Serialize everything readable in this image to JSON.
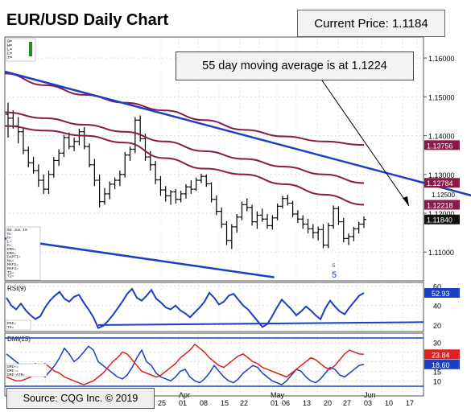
{
  "title": "EUR/USD Daily Chart",
  "current_price_label": "Current Price: 1.1184",
  "callout": "55 day moving average is at 1.1224",
  "source": "Source: CQG Inc. © 2019",
  "colors": {
    "price_bars": "#000000",
    "moving_averages": "#8b1a4a",
    "trendlines": "#1a3fc4",
    "rsi": "#1a3fc4",
    "dmi_plus": "#1a3fc4",
    "dmi_minus": "#e02020",
    "bg": "#ffffff"
  },
  "chart_data": [
    {
      "type": "candlestick",
      "title": "EUR/USD Daily Chart",
      "ylim": [
        1.103,
        1.165
      ],
      "yticks": [
        1.11,
        1.12,
        1.13,
        1.14,
        1.15,
        1.16
      ],
      "ytick_labels": [
        "1.11000",
        "1.12000",
        "1.13000",
        "1.14000",
        "1.15000",
        "1.16000"
      ],
      "extra_labels": [
        "1.12500"
      ],
      "price_tags": [
        {
          "label": "1.13756",
          "value": 1.13756,
          "bg": "#8b1a4a"
        },
        {
          "label": "1.12784",
          "value": 1.12784,
          "bg": "#8b1a4a"
        },
        {
          "label": "1.12218",
          "value": 1.12218,
          "bg": "#8b1a4a"
        },
        {
          "label": "1.11840",
          "value": 1.1184,
          "bg": "#111111"
        }
      ],
      "x_labels": [
        "25",
        "Apr",
        "01",
        "08",
        "15",
        "22",
        "May",
        "01",
        "06",
        "13",
        "20",
        "27",
        "Jun",
        "03",
        "10",
        "17"
      ],
      "ohlc": [
        [
          1.1455,
          1.1485,
          1.1395,
          1.1445
        ],
        [
          1.1445,
          1.1465,
          1.1418,
          1.1425
        ],
        [
          1.1425,
          1.1448,
          1.138,
          1.141
        ],
        [
          1.141,
          1.142,
          1.1352,
          1.1362
        ],
        [
          1.1362,
          1.1372,
          1.1318,
          1.133
        ],
        [
          1.133,
          1.1345,
          1.1302,
          1.131
        ],
        [
          1.131,
          1.1326,
          1.1268,
          1.1285
        ],
        [
          1.1285,
          1.13,
          1.125,
          1.1262
        ],
        [
          1.1262,
          1.131,
          1.125,
          1.13
        ],
        [
          1.13,
          1.1345,
          1.1292,
          1.1336
        ],
        [
          1.1336,
          1.1365,
          1.1322,
          1.1355
        ],
        [
          1.1355,
          1.1402,
          1.1345,
          1.1395
        ],
        [
          1.1395,
          1.1408,
          1.1365,
          1.1372
        ],
        [
          1.1372,
          1.1395,
          1.136,
          1.1385
        ],
        [
          1.1385,
          1.1418,
          1.1375,
          1.141
        ],
        [
          1.141,
          1.1422,
          1.1365,
          1.1372
        ],
        [
          1.1372,
          1.138,
          1.1318,
          1.1325
        ],
        [
          1.1325,
          1.134,
          1.127,
          1.1285
        ],
        [
          1.1285,
          1.13,
          1.1215,
          1.123
        ],
        [
          1.123,
          1.1265,
          1.1222,
          1.125
        ],
        [
          1.125,
          1.1282,
          1.1236,
          1.1275
        ],
        [
          1.1275,
          1.1292,
          1.1262,
          1.1285
        ],
        [
          1.1285,
          1.131,
          1.127,
          1.13
        ],
        [
          1.13,
          1.1358,
          1.1292,
          1.135
        ],
        [
          1.135,
          1.1372,
          1.1335,
          1.1365
        ],
        [
          1.1365,
          1.1448,
          1.1355,
          1.144
        ],
        [
          1.144,
          1.1452,
          1.1385,
          1.1392
        ],
        [
          1.1392,
          1.1405,
          1.1335,
          1.1345
        ],
        [
          1.1345,
          1.136,
          1.131,
          1.1325
        ],
        [
          1.1325,
          1.1335,
          1.1275,
          1.1286
        ],
        [
          1.1286,
          1.1296,
          1.1245,
          1.126
        ],
        [
          1.126,
          1.127,
          1.123,
          1.1245
        ],
        [
          1.1245,
          1.126,
          1.1222,
          1.1255
        ],
        [
          1.1255,
          1.1262,
          1.1225,
          1.1236
        ],
        [
          1.1236,
          1.1258,
          1.1228,
          1.125
        ],
        [
          1.125,
          1.1275,
          1.1238,
          1.1268
        ],
        [
          1.1268,
          1.1285,
          1.125,
          1.1262
        ],
        [
          1.1262,
          1.1292,
          1.1258,
          1.1285
        ],
        [
          1.1285,
          1.1302,
          1.1278,
          1.1295
        ],
        [
          1.1295,
          1.13,
          1.1268,
          1.1276
        ],
        [
          1.1276,
          1.128,
          1.1228,
          1.1236
        ],
        [
          1.1236,
          1.1246,
          1.1195,
          1.1205
        ],
        [
          1.1205,
          1.1215,
          1.1162,
          1.1172
        ],
        [
          1.1172,
          1.118,
          1.1118,
          1.113
        ],
        [
          1.113,
          1.1172,
          1.1108,
          1.1165
        ],
        [
          1.1165,
          1.1198,
          1.115,
          1.119
        ],
        [
          1.119,
          1.123,
          1.1182,
          1.1222
        ],
        [
          1.1222,
          1.1238,
          1.1205,
          1.1215
        ],
        [
          1.1215,
          1.1222,
          1.1168,
          1.1178
        ],
        [
          1.1178,
          1.1205,
          1.116,
          1.1195
        ],
        [
          1.1195,
          1.1212,
          1.1178,
          1.1185
        ],
        [
          1.1185,
          1.1198,
          1.116,
          1.1168
        ],
        [
          1.1168,
          1.1195,
          1.1158,
          1.1188
        ],
        [
          1.1188,
          1.1225,
          1.1182,
          1.1218
        ],
        [
          1.1218,
          1.1245,
          1.1212,
          1.1238
        ],
        [
          1.1238,
          1.1248,
          1.122,
          1.1226
        ],
        [
          1.1226,
          1.1232,
          1.119,
          1.1198
        ],
        [
          1.1198,
          1.1208,
          1.1175,
          1.1185
        ],
        [
          1.1185,
          1.1195,
          1.116,
          1.1172
        ],
        [
          1.1172,
          1.1186,
          1.1148,
          1.116
        ],
        [
          1.116,
          1.1172,
          1.1135,
          1.115
        ],
        [
          1.115,
          1.1166,
          1.113,
          1.1158
        ],
        [
          1.1158,
          1.1172,
          1.111,
          1.1118
        ],
        [
          1.1118,
          1.1175,
          1.111,
          1.1168
        ],
        [
          1.1168,
          1.122,
          1.116,
          1.1212
        ],
        [
          1.1212,
          1.1218,
          1.117,
          1.1178
        ],
        [
          1.1178,
          1.1188,
          1.1125,
          1.1135
        ],
        [
          1.1135,
          1.1148,
          1.1118,
          1.114
        ],
        [
          1.114,
          1.1165,
          1.1128,
          1.116
        ],
        [
          1.116,
          1.1178,
          1.1148,
          1.1172
        ],
        [
          1.1172,
          1.1192,
          1.1162,
          1.1184
        ]
      ],
      "moving_averages": [
        {
          "value_at_end": 1.13756,
          "values": [
            1.156,
            1.153,
            1.1505,
            1.1485,
            1.1465,
            1.144,
            1.1415,
            1.1398,
            1.1385,
            1.1376
          ]
        },
        {
          "value_at_end": 1.12784,
          "values": [
            1.146,
            1.1445,
            1.1428,
            1.141,
            1.1385,
            1.136,
            1.134,
            1.132,
            1.13,
            1.1278
          ]
        },
        {
          "value_at_end": 1.12218,
          "values": [
            1.1425,
            1.1413,
            1.14,
            1.1382,
            1.1342,
            1.1315,
            1.13,
            1.1275,
            1.1248,
            1.1222
          ]
        }
      ],
      "trendlines": [
        {
          "from": [
            0,
            1.1565
          ],
          "to": [
            92,
            1.1245
          ]
        },
        {
          "from": [
            0,
            1.1135
          ],
          "to": [
            53,
            1.1035
          ]
        }
      ],
      "info_panel": [
        "O=",
        "H=",
        "L=",
        "C=",
        "±="
      ],
      "info_panel_lower": [
        "03 Jun 19",
        "O=",
        "H=",
        "L=",
        "C=",
        "EMA=",
        "EMA=",
        "DAPTI=",
        "MA=",
        "MAF2=",
        "MAF3=",
        "T1=",
        "T2="
      ],
      "annotation": "5"
    },
    {
      "type": "line",
      "title": "RSI(9)",
      "ylim": [
        15,
        62
      ],
      "yticks": [
        20,
        40,
        60
      ],
      "tag": {
        "label": "52.93",
        "value": 52.93
      },
      "values": [
        48,
        40,
        36,
        42,
        35,
        30,
        26,
        29,
        38,
        45,
        50,
        54,
        47,
        44,
        49,
        51,
        43,
        36,
        28,
        17,
        19,
        24,
        30,
        37,
        44,
        52,
        57,
        48,
        45,
        50,
        56,
        47,
        43,
        38,
        36,
        40,
        35,
        32,
        28,
        33,
        38,
        44,
        53,
        48,
        41,
        44,
        50,
        52,
        46,
        40,
        36,
        30,
        24,
        18,
        21,
        29,
        38,
        46,
        41,
        36,
        30,
        34,
        39,
        35,
        30,
        26,
        37,
        45,
        39,
        34,
        31,
        38,
        44,
        50,
        52.93
      ],
      "trendline": {
        "from": [
          19,
          20
        ],
        "to": [
          74,
          23
        ]
      },
      "info": [
        "RSI=",
        "TS="
      ]
    },
    {
      "type": "line",
      "title": "DMI(13)",
      "ylim": [
        3,
        34
      ],
      "yticks": [
        10,
        15,
        20,
        25,
        30
      ],
      "tags": [
        {
          "label": "23.84",
          "value": 23.84,
          "bg": "#e02020"
        },
        {
          "label": "18.60",
          "value": 18.6,
          "bg": "#1a3fc4"
        }
      ],
      "series": [
        {
          "name": "DMI+",
          "values": [
            24,
            22,
            20,
            18,
            16,
            17,
            19,
            14,
            12,
            15,
            18,
            22,
            27,
            24,
            20,
            22,
            25,
            28,
            26,
            20,
            18,
            16,
            14,
            12,
            11,
            13,
            17,
            22,
            26,
            20,
            18,
            14,
            12,
            11,
            10,
            12,
            15,
            16,
            12,
            10,
            9,
            11,
            14,
            18,
            15,
            12,
            10,
            9,
            11,
            14,
            16,
            18,
            17,
            14,
            12,
            10,
            9,
            8,
            10,
            13,
            16,
            15,
            12,
            10,
            9,
            11,
            14,
            17,
            16,
            13,
            12,
            14,
            16,
            18,
            18.6
          ]
        },
        {
          "name": "DMI-",
          "values": [
            12,
            11,
            10,
            10,
            11,
            12,
            15,
            18,
            19,
            17,
            15,
            14,
            12,
            11,
            10,
            9,
            8,
            9,
            10,
            12,
            14,
            17,
            20,
            22,
            25,
            24,
            21,
            18,
            15,
            14,
            13,
            12,
            13,
            15,
            17,
            19,
            22,
            24,
            26,
            29,
            27,
            25,
            22,
            20,
            18,
            17,
            19,
            21,
            23,
            24,
            22,
            20,
            19,
            17,
            16,
            15,
            14,
            13,
            12,
            14,
            16,
            18,
            20,
            22,
            21,
            19,
            17,
            16,
            18,
            21,
            24,
            26,
            25,
            24,
            23.84
          ]
        }
      ],
      "info": [
        "DMI+=",
        "DMI-=",
        "DMI-ATR="
      ]
    }
  ]
}
